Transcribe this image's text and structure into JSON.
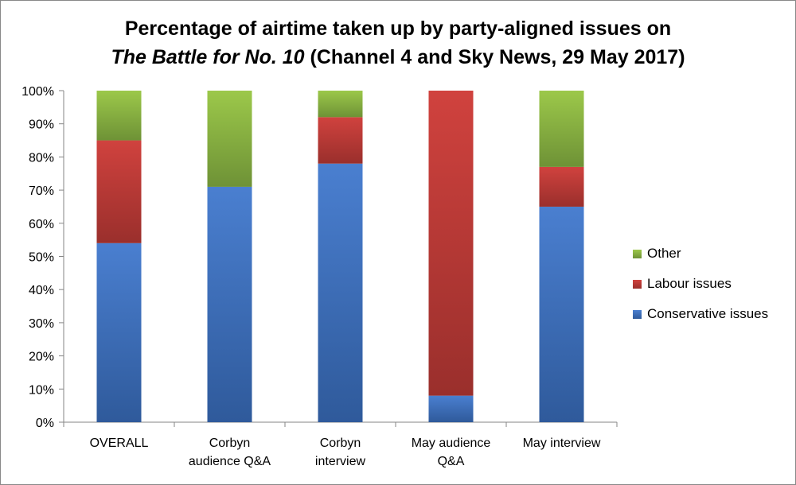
{
  "title": {
    "line1": "Percentage of airtime taken up by party-aligned issues on",
    "line2_italic": "The Battle for No. 10",
    "line2_rest": " (Channel 4 and Sky News, 29 May 2017)"
  },
  "colors": {
    "conservative": "#4472C4",
    "labour": "#C0504D",
    "other": "#9BBB59"
  },
  "chart_data": {
    "type": "bar",
    "stacked": true,
    "title": "Percentage of airtime taken up by party-aligned issues on The Battle for No. 10 (Channel 4 and Sky News, 29 May 2017)",
    "categories": [
      [
        "OVERALL"
      ],
      [
        "Corbyn",
        "audience Q&A"
      ],
      [
        "Corbyn",
        "interview"
      ],
      [
        "May audience",
        "Q&A"
      ],
      [
        "May interview"
      ]
    ],
    "series": [
      {
        "name": "Conservative issues",
        "color": "#4472C4",
        "values": [
          54,
          71,
          78,
          8,
          65
        ]
      },
      {
        "name": "Labour issues",
        "color": "#C0504D",
        "values": [
          31,
          0,
          14,
          92,
          12
        ]
      },
      {
        "name": "Other",
        "color": "#9BBB59",
        "values": [
          15,
          29,
          8,
          0,
          23
        ]
      }
    ],
    "yticks": [
      "0%",
      "10%",
      "20%",
      "30%",
      "40%",
      "50%",
      "60%",
      "70%",
      "80%",
      "90%",
      "100%"
    ],
    "ylim": [
      0,
      100
    ],
    "legend_position": "right",
    "legend": [
      "Other",
      "Labour issues",
      "Conservative issues"
    ],
    "grid": false
  }
}
